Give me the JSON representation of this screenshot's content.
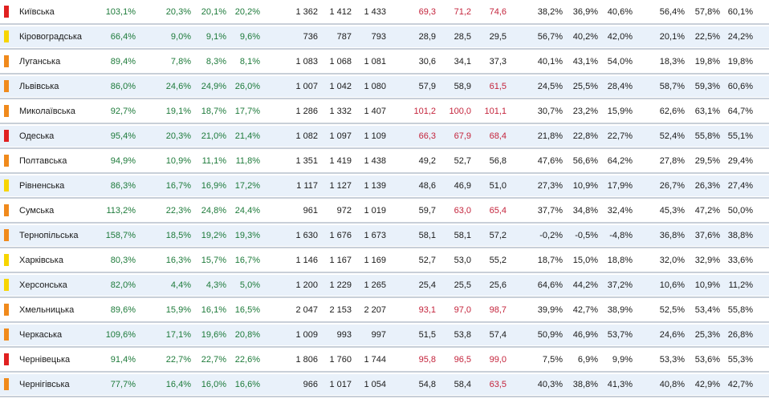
{
  "colors": {
    "red": "#e02020",
    "orange": "#f08a1c",
    "yellow": "#f7d500"
  },
  "rows": [
    {
      "name": "Київська",
      "marker": "red",
      "v": [
        "103,1%",
        "20,3%",
        "20,1%",
        "20,2%",
        "1 362",
        "1 412",
        "1 433",
        "69,3",
        "71,2",
        "74,6",
        "38,2%",
        "36,9%",
        "40,6%",
        "56,4%",
        "57,8%",
        "60,1%"
      ],
      "red": [
        true,
        true,
        true
      ]
    },
    {
      "name": "Кіровоградська",
      "marker": "yellow",
      "v": [
        "66,4%",
        "9,0%",
        "9,1%",
        "9,6%",
        "736",
        "787",
        "793",
        "28,9",
        "28,5",
        "29,5",
        "56,7%",
        "40,2%",
        "42,0%",
        "20,1%",
        "22,5%",
        "24,2%"
      ],
      "red": [
        false,
        false,
        false
      ]
    },
    {
      "name": "Луганська",
      "marker": "orange",
      "v": [
        "89,4%",
        "7,8%",
        "8,3%",
        "8,1%",
        "1 083",
        "1 068",
        "1 081",
        "30,6",
        "34,1",
        "37,3",
        "40,1%",
        "43,1%",
        "54,0%",
        "18,3%",
        "19,8%",
        "19,8%"
      ],
      "red": [
        false,
        false,
        false
      ]
    },
    {
      "name": "Львівська",
      "marker": "orange",
      "v": [
        "86,0%",
        "24,6%",
        "24,9%",
        "26,0%",
        "1 007",
        "1 042",
        "1 080",
        "57,9",
        "58,9",
        "61,5",
        "24,5%",
        "25,5%",
        "28,4%",
        "58,7%",
        "59,3%",
        "60,6%"
      ],
      "red": [
        false,
        false,
        true
      ]
    },
    {
      "name": "Миколаївська",
      "marker": "orange",
      "v": [
        "92,7%",
        "19,1%",
        "18,7%",
        "17,7%",
        "1 286",
        "1 332",
        "1 407",
        "101,2",
        "100,0",
        "101,1",
        "30,7%",
        "23,2%",
        "15,9%",
        "62,6%",
        "63,1%",
        "64,7%"
      ],
      "red": [
        true,
        true,
        true
      ]
    },
    {
      "name": "Одеська",
      "marker": "red",
      "v": [
        "95,4%",
        "20,3%",
        "21,0%",
        "21,4%",
        "1 082",
        "1 097",
        "1 109",
        "66,3",
        "67,9",
        "68,4",
        "21,8%",
        "22,8%",
        "22,7%",
        "52,4%",
        "55,8%",
        "55,1%"
      ],
      "red": [
        true,
        true,
        true
      ]
    },
    {
      "name": "Полтавська",
      "marker": "orange",
      "v": [
        "94,9%",
        "10,9%",
        "11,1%",
        "11,8%",
        "1 351",
        "1 419",
        "1 438",
        "49,2",
        "52,7",
        "56,8",
        "47,6%",
        "56,6%",
        "64,2%",
        "27,8%",
        "29,5%",
        "29,4%"
      ],
      "red": [
        false,
        false,
        false
      ]
    },
    {
      "name": "Рівненська",
      "marker": "yellow",
      "v": [
        "86,3%",
        "16,7%",
        "16,9%",
        "17,2%",
        "1 117",
        "1 127",
        "1 139",
        "48,6",
        "46,9",
        "51,0",
        "27,3%",
        "10,9%",
        "17,9%",
        "26,7%",
        "26,3%",
        "27,4%"
      ],
      "red": [
        false,
        false,
        false
      ]
    },
    {
      "name": "Сумська",
      "marker": "orange",
      "v": [
        "113,2%",
        "22,3%",
        "24,8%",
        "24,4%",
        "961",
        "972",
        "1 019",
        "59,7",
        "63,0",
        "65,4",
        "37,7%",
        "34,8%",
        "32,4%",
        "45,3%",
        "47,2%",
        "50,0%"
      ],
      "red": [
        false,
        true,
        true
      ]
    },
    {
      "name": "Тернопільська",
      "marker": "orange",
      "v": [
        "158,7%",
        "18,5%",
        "19,2%",
        "19,3%",
        "1 630",
        "1 676",
        "1 673",
        "58,1",
        "58,1",
        "57,2",
        "-0,2%",
        "-0,5%",
        "-4,8%",
        "36,8%",
        "37,6%",
        "38,8%"
      ],
      "red": [
        false,
        false,
        false
      ]
    },
    {
      "name": "Харківська",
      "marker": "yellow",
      "v": [
        "80,3%",
        "16,3%",
        "15,7%",
        "16,7%",
        "1 146",
        "1 167",
        "1 169",
        "52,7",
        "53,0",
        "55,2",
        "18,7%",
        "15,0%",
        "18,8%",
        "32,0%",
        "32,9%",
        "33,6%"
      ],
      "red": [
        false,
        false,
        false
      ]
    },
    {
      "name": "Херсонська",
      "marker": "yellow",
      "v": [
        "82,0%",
        "4,4%",
        "4,3%",
        "5,0%",
        "1 200",
        "1 229",
        "1 265",
        "25,4",
        "25,5",
        "25,6",
        "64,6%",
        "44,2%",
        "37,2%",
        "10,6%",
        "10,9%",
        "11,2%"
      ],
      "red": [
        false,
        false,
        false
      ]
    },
    {
      "name": "Хмельницька",
      "marker": "orange",
      "v": [
        "89,6%",
        "15,9%",
        "16,1%",
        "16,5%",
        "2 047",
        "2 153",
        "2 207",
        "93,1",
        "97,0",
        "98,7",
        "39,9%",
        "42,7%",
        "38,9%",
        "52,5%",
        "53,4%",
        "55,8%"
      ],
      "red": [
        true,
        true,
        true
      ]
    },
    {
      "name": "Черкаська",
      "marker": "orange",
      "v": [
        "109,6%",
        "17,1%",
        "19,6%",
        "20,8%",
        "1 009",
        "993",
        "997",
        "51,5",
        "53,8",
        "57,4",
        "50,9%",
        "46,9%",
        "53,7%",
        "24,6%",
        "25,3%",
        "26,8%"
      ],
      "red": [
        false,
        false,
        false
      ]
    },
    {
      "name": "Чернівецька",
      "marker": "red",
      "v": [
        "91,4%",
        "22,7%",
        "22,7%",
        "22,6%",
        "1 806",
        "1 760",
        "1 744",
        "95,8",
        "96,5",
        "99,0",
        "7,5%",
        "6,9%",
        "9,9%",
        "53,3%",
        "53,6%",
        "55,3%"
      ],
      "red": [
        true,
        true,
        true
      ]
    },
    {
      "name": "Чернігівська",
      "marker": "orange",
      "v": [
        "77,7%",
        "16,4%",
        "16,0%",
        "16,6%",
        "966",
        "1 017",
        "1 054",
        "54,8",
        "58,4",
        "63,5",
        "40,3%",
        "38,8%",
        "41,3%",
        "40,8%",
        "42,9%",
        "42,7%"
      ],
      "red": [
        false,
        false,
        true
      ]
    }
  ]
}
